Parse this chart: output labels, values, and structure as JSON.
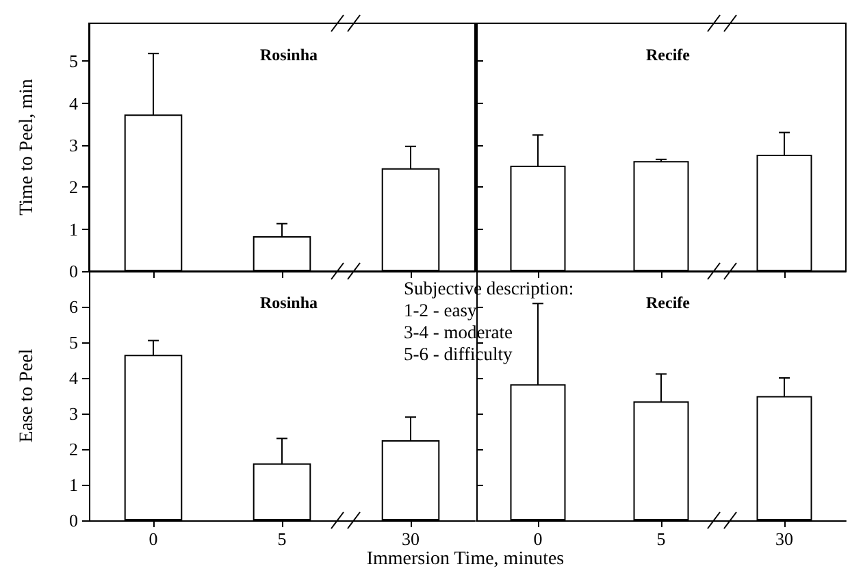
{
  "chart_data": [
    {
      "type": "bar",
      "title": "Rosinha",
      "ylabel": "Time to Peel, min",
      "categories": [
        "0",
        "5",
        "30"
      ],
      "values": [
        3.73,
        0.83,
        2.45
      ],
      "errors": [
        1.45,
        0.3,
        0.52
      ],
      "color": "#ffffff",
      "ylim": [
        0,
        5.9
      ],
      "yticks": [
        0,
        1,
        2,
        3,
        4,
        5
      ],
      "tick_labels": "y"
    },
    {
      "type": "bar",
      "title": "Recife",
      "categories": [
        "0",
        "5",
        "30"
      ],
      "values": [
        2.51,
        2.62,
        2.77
      ],
      "errors": [
        0.73,
        0.04,
        0.53
      ],
      "color": "#ffffff",
      "ylim": [
        0,
        5.9
      ],
      "yticks": [
        0,
        1,
        2,
        3,
        4,
        5
      ],
      "tick_labels": false
    },
    {
      "type": "bar",
      "title": "Rosinha",
      "ylabel": "Ease to Peel",
      "xlabel": "Immersion Time, minutes",
      "categories": [
        "0",
        "5",
        "30"
      ],
      "values": [
        4.65,
        1.6,
        2.25
      ],
      "errors": [
        0.4,
        0.7,
        0.65
      ],
      "color": "#ffffff",
      "ylim": [
        0,
        7
      ],
      "yticks": [
        0,
        1,
        2,
        3,
        4,
        5,
        6
      ]
    },
    {
      "type": "bar",
      "title": "Recife",
      "categories": [
        "0",
        "5",
        "30"
      ],
      "values": [
        3.82,
        3.34,
        3.49
      ],
      "errors": [
        2.27,
        0.77,
        0.51
      ],
      "color": "#ffffff",
      "ylim": [
        0,
        7
      ],
      "yticks": [
        0,
        1,
        2,
        3,
        4,
        5,
        6
      ],
      "tick_labels": "x",
      "annotations": [
        "Subjective description:",
        "1-2 - easy",
        "3-4 - moderate",
        "5-6 - difficulty"
      ]
    }
  ]
}
